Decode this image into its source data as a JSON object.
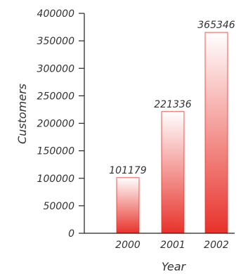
{
  "chart_data": {
    "type": "bar",
    "title": "",
    "xlabel": "Year",
    "ylabel": "Customers",
    "categories": [
      "2000",
      "2001",
      "2002"
    ],
    "values": [
      101179,
      221336,
      365346
    ],
    "value_labels": [
      "101179",
      "221336",
      "365346"
    ],
    "ylim": [
      0,
      400000
    ],
    "yticks": [
      0,
      50000,
      100000,
      150000,
      200000,
      250000,
      300000,
      350000,
      400000
    ],
    "ytick_labels": [
      "0",
      "50000",
      "100000",
      "150000",
      "200000",
      "250000",
      "300000",
      "350000",
      "400000"
    ],
    "grid": false,
    "legend": "none",
    "colors": {
      "bar_top": "#ffffff",
      "bar_bottom": "#e8322a",
      "bar_stroke": "#e8322a",
      "axis": "#222222",
      "text": "#333333"
    }
  }
}
